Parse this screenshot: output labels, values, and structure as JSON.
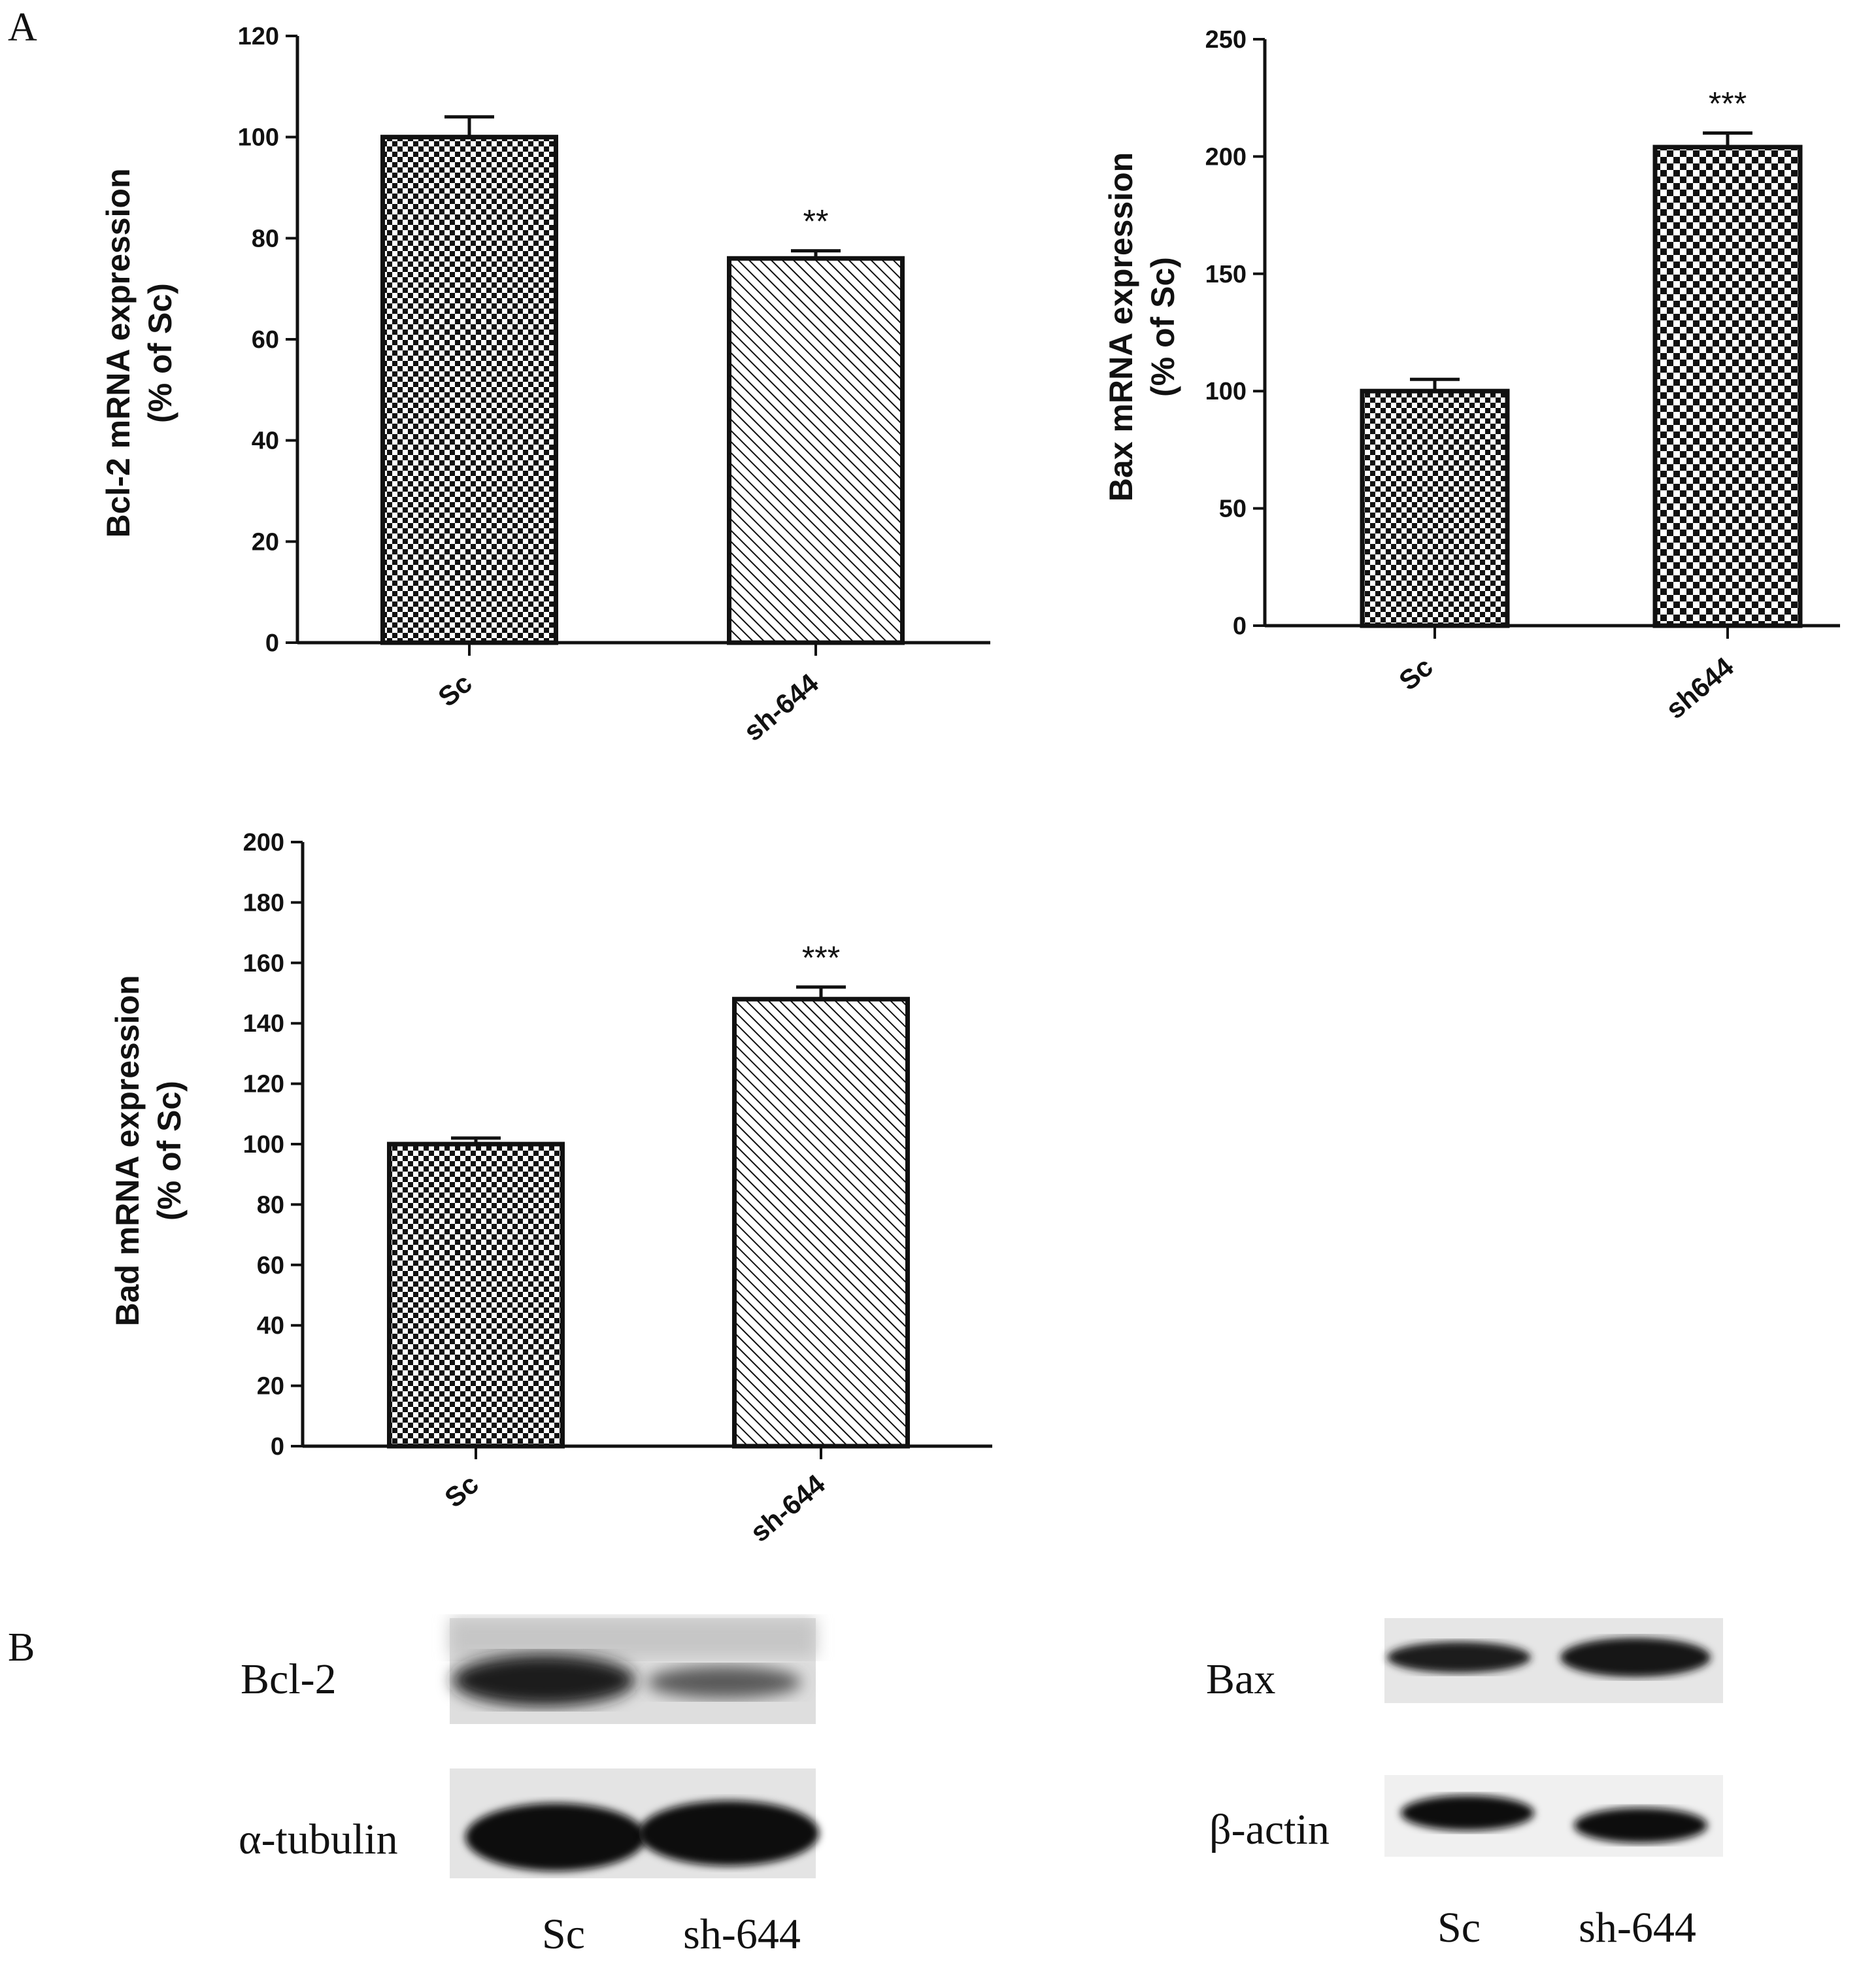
{
  "panels": [
    "A",
    "B"
  ],
  "chart_data": [
    {
      "type": "bar",
      "categories": [
        "Sc",
        "sh-644"
      ],
      "values": [
        100,
        76
      ],
      "errors": [
        4,
        1.5
      ],
      "significance": [
        "",
        "**"
      ],
      "patterns": [
        "checker",
        "hatch"
      ],
      "ylabel": [
        "Bcl-2 mRNA expression",
        "(% of Sc)"
      ],
      "ylim": [
        0,
        120
      ],
      "yticks": [
        0,
        20,
        40,
        60,
        80,
        100,
        120
      ]
    },
    {
      "type": "bar",
      "categories": [
        "Sc",
        "sh644"
      ],
      "values": [
        100,
        204
      ],
      "errors": [
        5,
        6
      ],
      "significance": [
        "",
        "***"
      ],
      "patterns": [
        "checker",
        "checker-bold"
      ],
      "ylabel": [
        "Bax mRNA expression",
        "(% of Sc)"
      ],
      "ylim": [
        0,
        250
      ],
      "yticks": [
        0,
        50,
        100,
        150,
        200,
        250
      ]
    },
    {
      "type": "bar",
      "categories": [
        "Sc",
        "sh-644"
      ],
      "values": [
        100,
        148
      ],
      "errors": [
        2,
        4
      ],
      "significance": [
        "",
        "***"
      ],
      "patterns": [
        "checker",
        "hatch"
      ],
      "ylabel": [
        "Bad mRNA expression",
        "(% of Sc)"
      ],
      "ylim": [
        0,
        200
      ],
      "yticks": [
        0,
        20,
        40,
        60,
        80,
        100,
        120,
        140,
        160,
        180,
        200
      ]
    }
  ],
  "blots": {
    "left": {
      "labels": [
        "Bcl-2",
        "α-tubulin"
      ],
      "lanes": [
        "Sc",
        "sh-644"
      ]
    },
    "right": {
      "labels": [
        "Bax",
        "β-actin"
      ],
      "lanes": [
        "Sc",
        "sh-644"
      ]
    }
  }
}
